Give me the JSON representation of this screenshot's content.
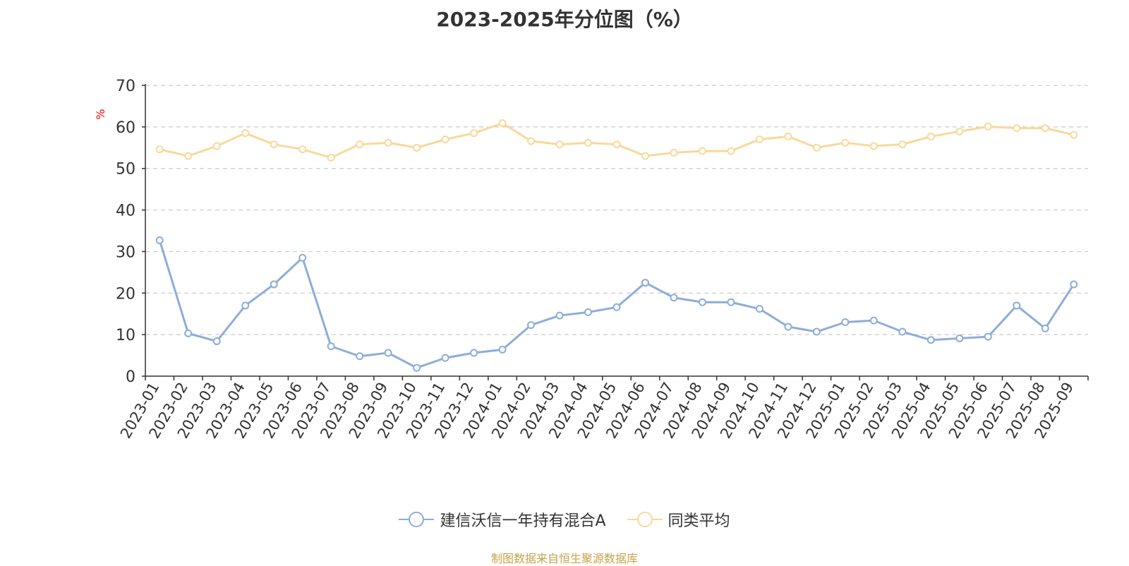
{
  "chart_data": {
    "type": "line",
    "title": "2023-2025年分位图（%）",
    "ylabel": "%",
    "xlabel": "",
    "ylim": [
      0,
      70
    ],
    "yticks": [
      0,
      10,
      20,
      30,
      40,
      50,
      60,
      70
    ],
    "grid": true,
    "legend_position": "bottom",
    "categories": [
      "2023-01",
      "2023-02",
      "2023-03",
      "2023-04",
      "2023-05",
      "2023-06",
      "2023-07",
      "2023-08",
      "2023-09",
      "2023-10",
      "2023-11",
      "2023-12",
      "2024-01",
      "2024-02",
      "2024-03",
      "2024-04",
      "2024-05",
      "2024-06",
      "2024-07",
      "2024-08",
      "2024-09",
      "2024-10",
      "2024-11",
      "2024-12",
      "2025-01",
      "2025-02",
      "2025-03",
      "2025-04",
      "2025-05",
      "2025-06",
      "2025-07",
      "2025-08",
      "2025-09"
    ],
    "series": [
      {
        "name": "建信沃信一年持有混合A",
        "color": "#8eadd9",
        "values": [
          32.7,
          10.3,
          8.4,
          17.0,
          22.1,
          28.5,
          7.2,
          4.8,
          5.6,
          2.0,
          4.4,
          5.6,
          6.4,
          12.3,
          14.6,
          15.4,
          16.6,
          22.5,
          18.9,
          17.8,
          17.8,
          16.2,
          11.9,
          10.7,
          13.0,
          13.4,
          10.7,
          8.7,
          9.1,
          9.5,
          17.0,
          11.5,
          22.1
        ]
      },
      {
        "name": "同类平均",
        "color": "#f9d99a",
        "values": [
          54.6,
          53.0,
          55.4,
          58.5,
          55.8,
          54.6,
          52.6,
          55.8,
          56.2,
          55.0,
          57.0,
          58.5,
          60.9,
          56.6,
          55.8,
          56.2,
          55.8,
          53.0,
          53.8,
          54.2,
          54.2,
          57.0,
          57.7,
          55.0,
          56.2,
          55.4,
          55.8,
          57.7,
          58.9,
          60.1,
          59.7,
          59.7,
          58.1
        ]
      }
    ]
  },
  "source_note": "制图数据来自恒生聚源数据库"
}
